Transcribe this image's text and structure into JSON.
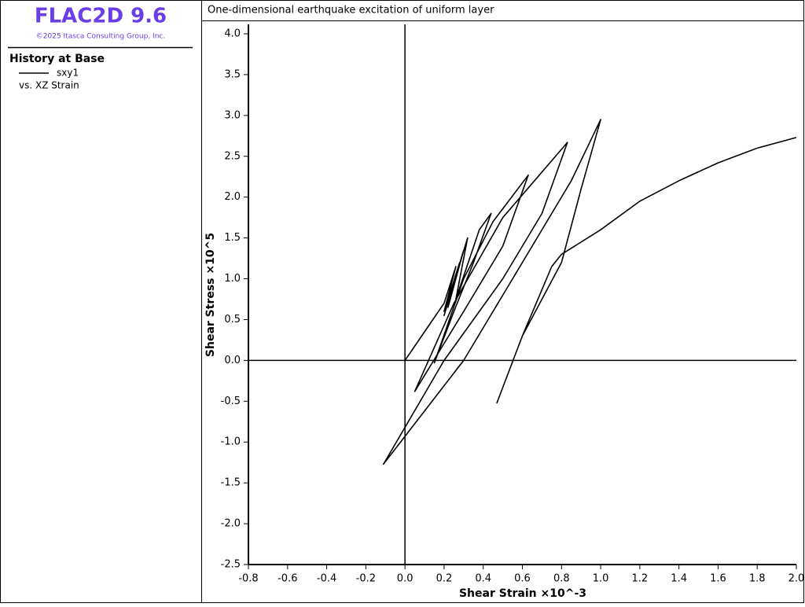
{
  "app": {
    "title": "FLAC2D 9.6",
    "copyright": "©2025 Itasca Consulting Group, Inc."
  },
  "sidebar": {
    "heading": "History at Base",
    "note": "vs. XZ Strain"
  },
  "chart_data": {
    "type": "line",
    "title": "One-dimensional earthquake excitation of uniform layer",
    "x_label": "Shear Strain ×10^-3",
    "y_label": "Shear Stress ×10^5",
    "xlim": [
      -0.8,
      2.0
    ],
    "ylim": [
      -2.5,
      4.0
    ],
    "xticks": [
      -0.8,
      -0.6,
      -0.4,
      -0.2,
      {
        "value": 0,
        "label": "0.0"
      },
      0.2,
      0.4,
      0.6,
      0.8,
      {
        "value": 1,
        "label": "1.0"
      },
      1.2,
      1.4,
      1.6,
      1.8,
      {
        "value": 2,
        "label": "2.0"
      }
    ],
    "yticks": [
      -2.5,
      {
        "value": -2,
        "label": "-2.0"
      },
      -1.5,
      {
        "value": -1,
        "label": "-1.0"
      },
      -0.5,
      {
        "value": 0,
        "label": "0.0"
      },
      0.5,
      {
        "value": 1,
        "label": "1.0"
      },
      1.5,
      {
        "value": 2,
        "label": "2.0"
      },
      2.5,
      {
        "value": 3,
        "label": "3.0"
      },
      3.5,
      {
        "value": 4,
        "label": "4.0"
      }
    ],
    "series": [
      {
        "name": "sxy1",
        "color": "#000000",
        "x": [
          0,
          0.1,
          0.2,
          0.26,
          0.2,
          0.28,
          0.22,
          0.3,
          0.2,
          0.32,
          0.26,
          0.38,
          0.44,
          0.35,
          0.25,
          0.15,
          0.3,
          0.45,
          0.63,
          0.5,
          0.3,
          0.05,
          0.25,
          0.5,
          0.83,
          0.7,
          0.5,
          0.2,
          -0.11,
          0,
          0.3,
          0.6,
          0.85,
          1.0,
          0.9,
          0.8,
          0.6,
          0.47,
          0.6,
          0.75,
          0.8,
          1.0,
          1.2,
          1.4,
          1.6,
          1.8,
          2.0
        ],
        "values": [
          0,
          0.35,
          0.7,
          1.15,
          0.6,
          1.2,
          0.65,
          1.35,
          0.55,
          1.5,
          0.75,
          1.6,
          1.8,
          1.2,
          0.6,
          -0.03,
          1.0,
          1.7,
          2.27,
          1.4,
          0.6,
          -0.38,
          0.7,
          1.75,
          2.67,
          1.8,
          1.0,
          0.0,
          -1.27,
          -0.93,
          0.0,
          1.2,
          2.2,
          2.95,
          2.1,
          1.2,
          0.3,
          -0.52,
          0.3,
          1.15,
          1.3,
          1.6,
          1.95,
          2.2,
          2.42,
          2.6,
          2.73
        ]
      }
    ]
  }
}
